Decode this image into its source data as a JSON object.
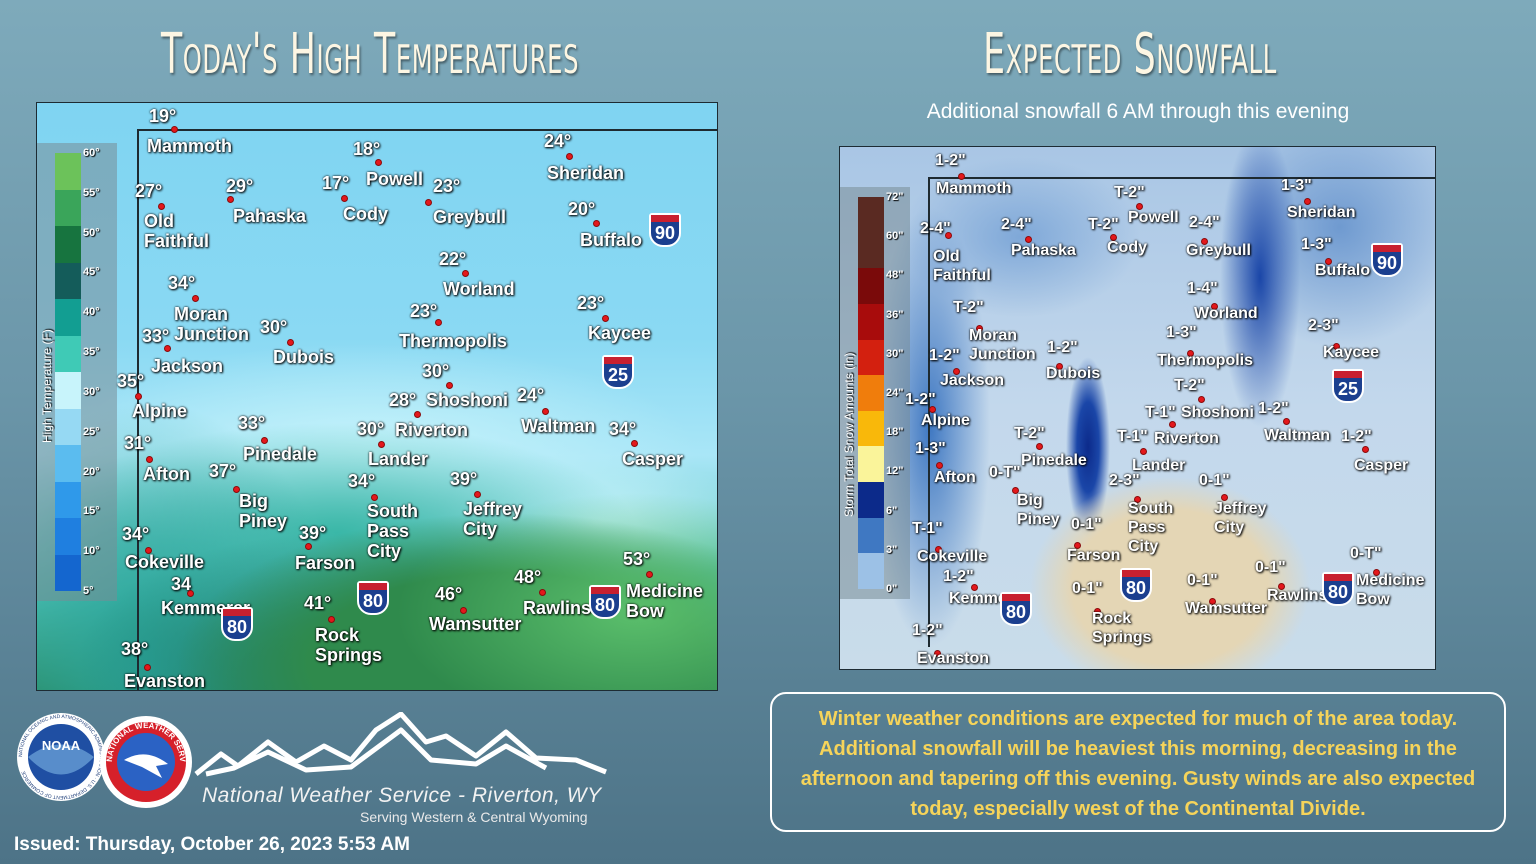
{
  "left_panel": {
    "title": "Today's High Temperatures",
    "legend": {
      "title": "High Temperature (F)",
      "ticks": [
        "60°",
        "55°",
        "50°",
        "45°",
        "40°",
        "35°",
        "30°",
        "25°",
        "20°",
        "15°",
        "10°",
        "5°"
      ],
      "colors": [
        "#6cc25a",
        "#3aa55a",
        "#17743f",
        "#145c5a",
        "#129e92",
        "#3fcab6",
        "#c8f4fb",
        "#96d9f3",
        "#5bbcef",
        "#2f99ea",
        "#1f7fe0",
        "#1466cf"
      ]
    },
    "cities": [
      {
        "name": "Mammoth",
        "value": "19°"
      },
      {
        "name": "Old\nFaithful",
        "value": "27°"
      },
      {
        "name": "Pahaska",
        "value": "29°"
      },
      {
        "name": "Cody",
        "value": "17°"
      },
      {
        "name": "Powell",
        "value": "18°"
      },
      {
        "name": "Greybull",
        "value": "23°"
      },
      {
        "name": "Sheridan",
        "value": "24°"
      },
      {
        "name": "Buffalo",
        "value": "20°"
      },
      {
        "name": "Worland",
        "value": "22°"
      },
      {
        "name": "Thermopolis",
        "value": "23°"
      },
      {
        "name": "Kaycee",
        "value": "23°"
      },
      {
        "name": "Moran\nJunction",
        "value": "34°"
      },
      {
        "name": "Jackson",
        "value": "33°"
      },
      {
        "name": "Dubois",
        "value": "30°"
      },
      {
        "name": "Alpine",
        "value": "35°"
      },
      {
        "name": "Shoshoni",
        "value": "30°"
      },
      {
        "name": "Riverton",
        "value": "28°"
      },
      {
        "name": "Waltman",
        "value": "24°"
      },
      {
        "name": "Casper",
        "value": "34°"
      },
      {
        "name": "Lander",
        "value": "30°"
      },
      {
        "name": "Pinedale",
        "value": "33°"
      },
      {
        "name": "Afton",
        "value": "31°"
      },
      {
        "name": "Big\nPiney",
        "value": "37°"
      },
      {
        "name": "Farson",
        "value": "39°"
      },
      {
        "name": "South\nPass\nCity",
        "value": "34°"
      },
      {
        "name": "Jeffrey\nCity",
        "value": "39°"
      },
      {
        "name": "Cokeville",
        "value": "34°"
      },
      {
        "name": "Kemmerer",
        "value": "34"
      },
      {
        "name": "Rock\nSprings",
        "value": "41°"
      },
      {
        "name": "Wamsutter",
        "value": "46°"
      },
      {
        "name": "Rawlins",
        "value": "48°"
      },
      {
        "name": "Medicine\nBow",
        "value": "53°"
      },
      {
        "name": "Evanston",
        "value": "38°"
      }
    ],
    "shields": [
      "90",
      "25",
      "80",
      "80",
      "80"
    ]
  },
  "right_panel": {
    "title": "Expected Snowfall",
    "subtitle": "Additional snowfall 6 AM through this evening",
    "legend": {
      "title": "Storm Total Snow Amounts (in)",
      "ticks": [
        "72\"",
        "60\"",
        "48\"",
        "36\"",
        "30\"",
        "24\"",
        "18\"",
        "12\"",
        "6\"",
        "3\"",
        "0\""
      ],
      "colors": [
        "#5a2a22",
        "#5a2a22",
        "#7a0a0a",
        "#a80c0c",
        "#d3200f",
        "#f07d0c",
        "#f9b80a",
        "#faf49a",
        "#0c2a8a",
        "#3f78c2",
        "#9cc1e6"
      ]
    },
    "cities": [
      {
        "name": "Mammoth",
        "value": "1-2\""
      },
      {
        "name": "Old\nFaithful",
        "value": "2-4\""
      },
      {
        "name": "Pahaska",
        "value": "2-4\""
      },
      {
        "name": "Cody",
        "value": "T-2\""
      },
      {
        "name": "Powell",
        "value": "T-2\""
      },
      {
        "name": "Greybull",
        "value": "2-4\""
      },
      {
        "name": "Sheridan",
        "value": "1-3\""
      },
      {
        "name": "Buffalo",
        "value": "1-3\""
      },
      {
        "name": "Worland",
        "value": "1-4\""
      },
      {
        "name": "Thermopolis",
        "value": "1-3\""
      },
      {
        "name": "Kaycee",
        "value": "2-3\""
      },
      {
        "name": "Moran\nJunction",
        "value": "T-2\""
      },
      {
        "name": "Jackson",
        "value": "1-2\""
      },
      {
        "name": "Dubois",
        "value": "1-2\""
      },
      {
        "name": "Alpine",
        "value": "1-2\""
      },
      {
        "name": "Shoshoni",
        "value": "T-2\""
      },
      {
        "name": "Riverton",
        "value": "T-1\""
      },
      {
        "name": "Waltman",
        "value": "1-2\""
      },
      {
        "name": "Casper",
        "value": "1-2\""
      },
      {
        "name": "Lander",
        "value": "T-1\""
      },
      {
        "name": "Pinedale",
        "value": "T-2\""
      },
      {
        "name": "Afton",
        "value": "1-3\""
      },
      {
        "name": "Big\nPiney",
        "value": "0-T\""
      },
      {
        "name": "Farson",
        "value": "0-1\""
      },
      {
        "name": "South\nPass\nCity",
        "value": "2-3\""
      },
      {
        "name": "Jeffrey\nCity",
        "value": "0-1\""
      },
      {
        "name": "Cokeville",
        "value": "T-1\""
      },
      {
        "name": "Kemmerer",
        "value": "1-2\""
      },
      {
        "name": "Rock\nSprings",
        "value": "0-1\""
      },
      {
        "name": "Wamsutter",
        "value": "0-1\""
      },
      {
        "name": "Rawlins",
        "value": "0-1\""
      },
      {
        "name": "Medicine\nBow",
        "value": "0-T\""
      },
      {
        "name": "Evanston",
        "value": "1-2\""
      }
    ],
    "shields": [
      "90",
      "25",
      "80",
      "80",
      "80"
    ]
  },
  "statement": "Winter weather conditions are expected for much of the area today. Additional snowfall will be heaviest this morning, decreasing in the afternoon and tapering off this evening. Gusty winds are also expected today, especially west of the Continental Divide.",
  "branding": {
    "noaa_logo": "NOAA",
    "noaa_ring_text": "NATIONAL OCEANIC AND ATMOSPHERIC ADMINISTRATION · U.S. DEPARTMENT OF COMMERCE",
    "nws_ring_text": "NATIONAL WEATHER SERVICE",
    "office": "National Weather Service - Riverton, WY",
    "serving": "Serving Western & Central Wyoming"
  },
  "issued": "Issued: Thursday, October 26, 2023 5:53 AM",
  "colors": {
    "statement_text": "#f6d45a",
    "city_dot": "#e4171b",
    "title_text": "#fdf6e3"
  }
}
